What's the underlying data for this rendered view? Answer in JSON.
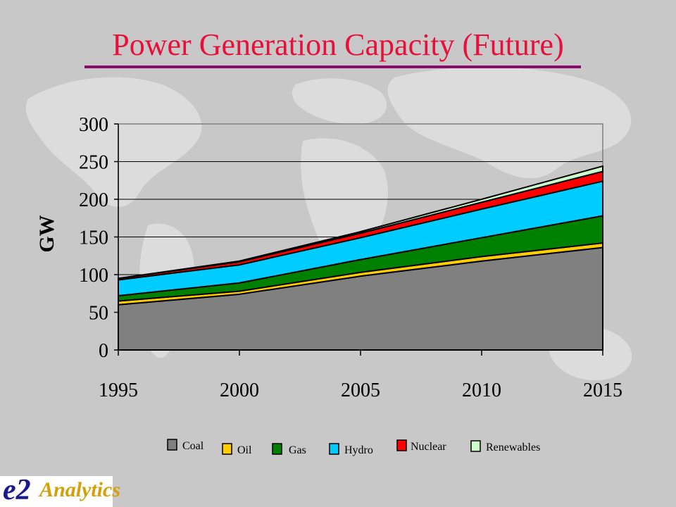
{
  "slide": {
    "title": "Power Generation Capacity (Future)",
    "logo": {
      "e2": "e2",
      "analytics": "Analytics"
    }
  },
  "chart_data": {
    "type": "area",
    "stacked": true,
    "title": "",
    "xlabel": "",
    "ylabel": "GW",
    "x": [
      1995,
      2000,
      2005,
      2010,
      2015
    ],
    "xticks": [
      "1995",
      "2000",
      "2005",
      "2010",
      "2015"
    ],
    "ylim": [
      0,
      300
    ],
    "yticks": [
      "0",
      "50",
      "100",
      "150",
      "200",
      "250",
      "300"
    ],
    "grid": true,
    "legend_position": "bottom",
    "series": [
      {
        "name": "Coal",
        "values": [
          60,
          74,
          98,
          118,
          136
        ],
        "color": "#808080"
      },
      {
        "name": "Oil",
        "values": [
          5,
          4,
          5,
          6,
          6
        ],
        "color": "#ffcc00"
      },
      {
        "name": "Gas",
        "values": [
          7,
          11,
          17,
          25,
          36
        ],
        "color": "#008000"
      },
      {
        "name": "Hydro",
        "values": [
          21,
          24,
          29,
          38,
          46
        ],
        "color": "#00ccff"
      },
      {
        "name": "Nuclear",
        "values": [
          2,
          4,
          6,
          9,
          13
        ],
        "color": "#ff0000"
      },
      {
        "name": "Renewables",
        "values": [
          0,
          1,
          2,
          4,
          7
        ],
        "color": "#ccffcc"
      }
    ]
  }
}
